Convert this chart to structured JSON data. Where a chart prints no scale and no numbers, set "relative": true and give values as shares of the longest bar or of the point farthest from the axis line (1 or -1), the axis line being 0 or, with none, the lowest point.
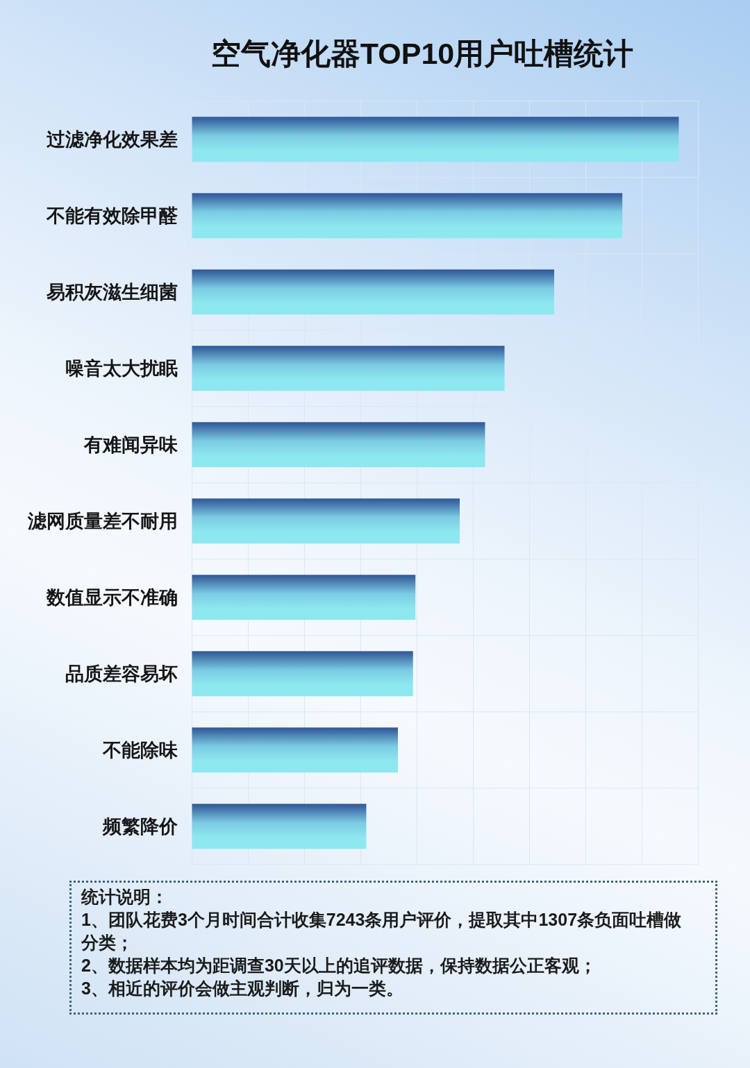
{
  "chart_data": {
    "type": "bar",
    "orientation": "horizontal",
    "relative": true,
    "title": "空气净化器TOP10用户吐槽统计",
    "categories": [
      "过滤净化效果差",
      "不能有效除甲醛",
      "易积灰滋生细菌",
      "噪音太大扰眠",
      "有难闻异味",
      "滤网质量差不耐用",
      "数值显示不准确",
      "品质差容易坏",
      "不能除味",
      "频繁降价"
    ],
    "values": [
      1,
      0.884,
      0.744,
      0.642,
      0.602,
      0.55,
      0.459,
      0.454,
      0.423,
      0.358
    ],
    "color": "#7ccbe3",
    "grid": true,
    "annotations": [
      "统计说明：",
      "1、团队花费3个月时间合计收集7243条用户评价，提取其中1307条负面吐槽做分类；",
      "2、数据样本均为距调查30天以上的追评数据，保持数据公正客观；",
      "3、相近的评价会做主观判断，归为一类。"
    ]
  }
}
